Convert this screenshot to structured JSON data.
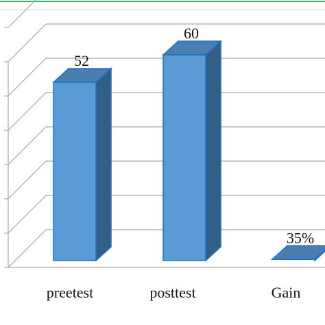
{
  "chart_data": {
    "type": "bar",
    "style": "3d-column",
    "categories": [
      "preetest",
      "posttest",
      "Gain"
    ],
    "values": [
      52,
      60,
      0.35
    ],
    "data_labels": [
      "52",
      "60",
      "35%"
    ],
    "title": "",
    "xlabel": "",
    "ylabel": "",
    "ylim": [
      0,
      70
    ],
    "grid": true,
    "legend": "none",
    "colors": {
      "bar_front": "#5B9BD5",
      "bar_side": "#335E86",
      "bar_top": "#4A7DB0",
      "bar_edge": "#1F6FC5",
      "grid": "#A6A6A6",
      "top_rule": "#3CB371"
    }
  }
}
